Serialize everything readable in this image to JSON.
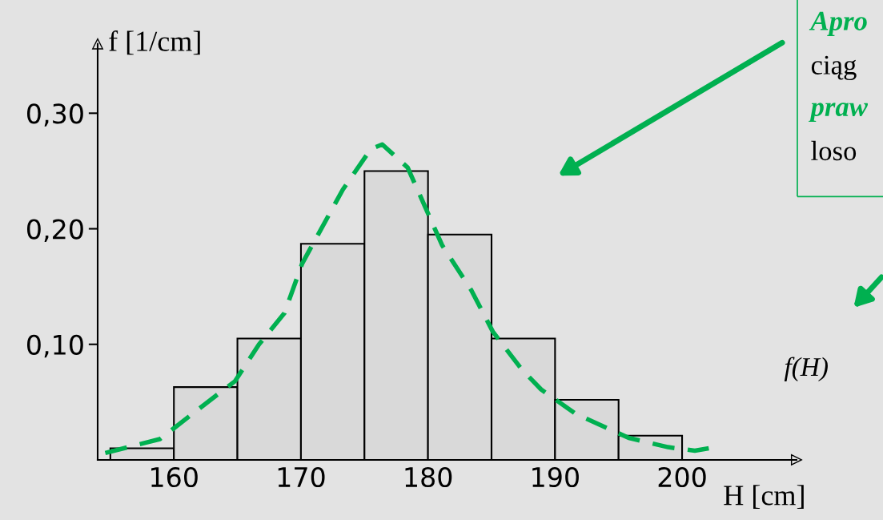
{
  "chart_data": {
    "type": "histogram",
    "bins": [
      155,
      160,
      165,
      170,
      175,
      180,
      185,
      190,
      195,
      200
    ],
    "values": [
      0.01,
      0.063,
      0.105,
      0.187,
      0.25,
      0.195,
      0.105,
      0.052,
      0.021
    ],
    "color": "#d9d9d9",
    "series": [
      {
        "type": "line",
        "color": "#00b050",
        "line_style": "dashed",
        "x": [
          154.6,
          158.9,
          162.3,
          164.8,
          166.7,
          168.7,
          170.1,
          173.3,
          175.5,
          176.4,
          178.4,
          181.1,
          183.4,
          185.1,
          187.4,
          188.9,
          191.6,
          195.8,
          198.9,
          201.0,
          202.1
        ],
        "values": [
          0.006,
          0.018,
          0.047,
          0.068,
          0.1,
          0.127,
          0.17,
          0.234,
          0.269,
          0.273,
          0.253,
          0.186,
          0.147,
          0.111,
          0.078,
          0.061,
          0.04,
          0.019,
          0.011,
          0.008,
          0.01
        ]
      }
    ],
    "xlabel": "H [cm]",
    "ylabel": "f [1/cm]",
    "xlim": [
      154,
      209
    ],
    "ylim": [
      0,
      0.36
    ],
    "xticks": [
      160,
      170,
      180,
      190,
      200
    ],
    "yticks": [
      {
        "value": 0.1,
        "label": "0,10"
      },
      {
        "value": 0.2,
        "label": "0,20"
      },
      {
        "value": 0.3,
        "label": "0,30"
      }
    ],
    "grid": false,
    "legend": false,
    "marker": "none",
    "annotations": [
      "Apro",
      "ciąg",
      "praw",
      "loso",
      "f(H)"
    ]
  }
}
